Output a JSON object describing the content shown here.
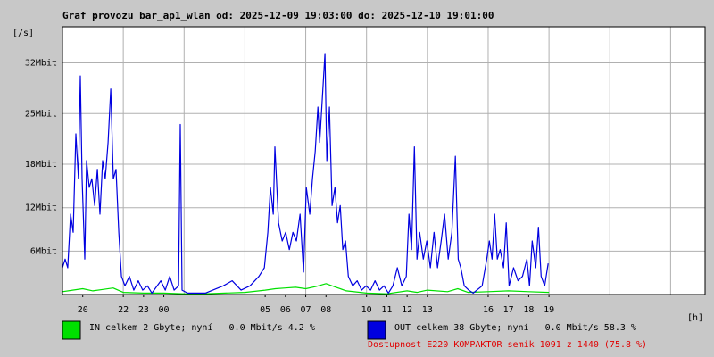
{
  "chart_data": {
    "type": "line",
    "title": "Graf provozu bar_ap1_wlan od: 2025-12-09 19:03:00 do: 2025-12-10 19:01:00",
    "ylabel": "[/s]",
    "xlabel": "[h]",
    "note": "Dostupnost E220 KOMPAKTOR semik 1091 z 1440 (75.8 %)",
    "grid": true,
    "ylim": [
      0,
      37
    ],
    "yticks": [
      {
        "value": 6,
        "label": "6Mbit"
      },
      {
        "value": 12,
        "label": "12Mbit"
      },
      {
        "value": 18,
        "label": "18Mbit"
      },
      {
        "value": 25,
        "label": "25Mbit"
      },
      {
        "value": 32,
        "label": "32Mbit"
      }
    ],
    "xlim": [
      0,
      31.7
    ],
    "xticks": [
      {
        "value": 1,
        "label": "20"
      },
      {
        "value": 3,
        "label": "22"
      },
      {
        "value": 4,
        "label": "23"
      },
      {
        "value": 5,
        "label": "00"
      },
      {
        "value": 10,
        "label": "05"
      },
      {
        "value": 11,
        "label": "06"
      },
      {
        "value": 12,
        "label": "07"
      },
      {
        "value": 13,
        "label": "08"
      },
      {
        "value": 15,
        "label": "10"
      },
      {
        "value": 16,
        "label": "11"
      },
      {
        "value": 17,
        "label": "12"
      },
      {
        "value": 18,
        "label": "13"
      },
      {
        "value": 21,
        "label": "16"
      },
      {
        "value": 22,
        "label": "17"
      },
      {
        "value": 23,
        "label": "18"
      },
      {
        "value": 24,
        "label": "19"
      }
    ],
    "xgrid": [
      3,
      6,
      9,
      12,
      15,
      18,
      21,
      24,
      27,
      30
    ],
    "series": [
      {
        "name": "IN celkem 2 Gbyte; nyní   0.0 Mbit/s 4.2 %",
        "color": "#00e000",
        "x": [
          0,
          0.5,
          1,
          1.5,
          2,
          2.5,
          3,
          4,
          5,
          6,
          7,
          8,
          9,
          10,
          10.5,
          11,
          11.5,
          12,
          12.5,
          13,
          13.5,
          14,
          15,
          16,
          17,
          17.5,
          18,
          19,
          19.5,
          20,
          21,
          22,
          23,
          24
        ],
        "values": [
          0.4,
          0.6,
          0.8,
          0.5,
          0.7,
          0.9,
          0.3,
          0.2,
          0.2,
          0.1,
          0.1,
          0.2,
          0.3,
          0.6,
          0.8,
          0.9,
          1.0,
          0.8,
          1.1,
          1.5,
          1.0,
          0.5,
          0.2,
          0.1,
          0.5,
          0.3,
          0.6,
          0.4,
          0.8,
          0.3,
          0.4,
          0.5,
          0.4,
          0.3
        ]
      },
      {
        "name": "OUT celkem 38 Gbyte; nyní   0.0 Mbit/s 58.3 %",
        "color": "#0000e0",
        "x": [
          0,
          0.13,
          0.26,
          0.4,
          0.53,
          0.66,
          0.79,
          0.88,
          0.97,
          1.1,
          1.19,
          1.32,
          1.45,
          1.59,
          1.72,
          1.85,
          1.98,
          2.11,
          2.25,
          2.38,
          2.51,
          2.64,
          2.78,
          2.91,
          3.08,
          3.3,
          3.52,
          3.74,
          3.96,
          4.19,
          4.41,
          4.85,
          5.07,
          5.29,
          5.51,
          5.73,
          5.81,
          5.9,
          6.17,
          7.05,
          7.93,
          8.37,
          8.81,
          9.25,
          9.69,
          9.96,
          10.13,
          10.26,
          10.4,
          10.48,
          10.66,
          10.84,
          11.01,
          11.19,
          11.37,
          11.54,
          11.72,
          11.89,
          12.03,
          12.2,
          12.33,
          12.47,
          12.6,
          12.69,
          12.82,
          12.95,
          13.04,
          13.17,
          13.3,
          13.44,
          13.57,
          13.7,
          13.83,
          13.96,
          14.1,
          14.32,
          14.54,
          14.76,
          14.98,
          15.2,
          15.42,
          15.64,
          15.86,
          16.08,
          16.3,
          16.52,
          16.74,
          16.96,
          17.09,
          17.22,
          17.36,
          17.49,
          17.62,
          17.8,
          17.97,
          18.15,
          18.33,
          18.5,
          18.68,
          18.85,
          19.03,
          19.21,
          19.38,
          19.52,
          19.65,
          19.82,
          20.04,
          20.26,
          20.7,
          20.93,
          21.06,
          21.19,
          21.32,
          21.45,
          21.59,
          21.76,
          21.89,
          22.03,
          22.25,
          22.47,
          22.69,
          22.91,
          23.04,
          23.17,
          23.35,
          23.48,
          23.61,
          23.79,
          23.96
        ],
        "values": [
          3.7,
          4.9,
          3.7,
          11.1,
          8.6,
          22.2,
          16.0,
          30.2,
          16.0,
          4.9,
          18.5,
          14.8,
          16.0,
          12.3,
          17.3,
          11.1,
          18.5,
          16.0,
          21.0,
          28.4,
          16.0,
          17.3,
          8.6,
          2.5,
          1.2,
          2.5,
          0.6,
          1.9,
          0.6,
          1.2,
          0.2,
          1.9,
          0.6,
          2.5,
          0.6,
          1.2,
          23.5,
          0.6,
          0.2,
          0.2,
          1.2,
          1.9,
          0.6,
          1.2,
          2.5,
          3.7,
          8.6,
          14.8,
          11.1,
          20.4,
          9.9,
          7.4,
          8.6,
          6.2,
          8.6,
          7.4,
          11.1,
          3.1,
          14.8,
          11.1,
          16.0,
          19.8,
          25.9,
          21.0,
          27.2,
          33.3,
          18.5,
          25.9,
          12.3,
          14.8,
          9.9,
          12.3,
          6.2,
          7.4,
          2.5,
          1.2,
          1.9,
          0.6,
          1.2,
          0.6,
          1.9,
          0.6,
          1.2,
          0.2,
          1.2,
          3.7,
          1.2,
          2.5,
          11.1,
          6.2,
          20.4,
          4.9,
          8.6,
          4.9,
          7.4,
          3.7,
          8.6,
          3.7,
          7.4,
          11.1,
          4.9,
          8.6,
          19.1,
          4.9,
          3.7,
          1.2,
          0.6,
          0.2,
          1.2,
          4.9,
          7.4,
          4.9,
          11.1,
          4.9,
          6.2,
          3.7,
          9.9,
          1.2,
          3.7,
          1.9,
          2.5,
          4.9,
          1.2,
          7.4,
          3.7,
          9.3,
          2.5,
          1.2,
          4.3
        ]
      }
    ]
  }
}
